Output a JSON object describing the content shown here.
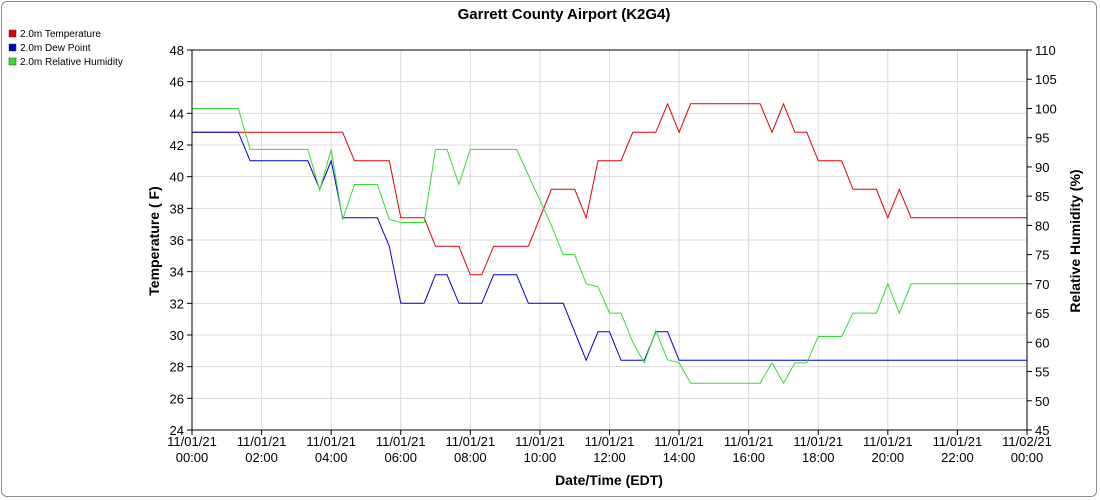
{
  "chart_data": {
    "type": "line",
    "title": "Garrett County Airport (K2G4)",
    "xlabel": "Date/Time (EDT)",
    "ylabel_left": "Temperature ( F)",
    "ylabel_right": "Relative Humidity (%)",
    "ylim_left": [
      24,
      48
    ],
    "ylim_right": [
      45,
      110
    ],
    "xlim_hours": [
      0,
      24
    ],
    "left_ticks": [
      "24",
      "26",
      "28",
      "30",
      "32",
      "34",
      "36",
      "38",
      "40",
      "42",
      "44",
      "46",
      "48"
    ],
    "right_ticks": [
      "45",
      "50",
      "55",
      "60",
      "65",
      "70",
      "75",
      "80",
      "85",
      "90",
      "95",
      "100",
      "105",
      "110"
    ],
    "x_ticks": [
      {
        "date": "11/01/21",
        "time": "00:00"
      },
      {
        "date": "11/01/21",
        "time": "02:00"
      },
      {
        "date": "11/01/21",
        "time": "04:00"
      },
      {
        "date": "11/01/21",
        "time": "06:00"
      },
      {
        "date": "11/01/21",
        "time": "08:00"
      },
      {
        "date": "11/01/21",
        "time": "10:00"
      },
      {
        "date": "11/01/21",
        "time": "12:00"
      },
      {
        "date": "11/01/21",
        "time": "14:00"
      },
      {
        "date": "11/01/21",
        "time": "16:00"
      },
      {
        "date": "11/01/21",
        "time": "18:00"
      },
      {
        "date": "11/01/21",
        "time": "20:00"
      },
      {
        "date": "11/01/21",
        "time": "22:00"
      },
      {
        "date": "11/02/21",
        "time": "00:00"
      }
    ],
    "grid": true,
    "legend_placement": "top-left",
    "series": [
      {
        "name": "2.0m Temperature",
        "color": "#e00000",
        "axis": "left",
        "points": [
          [
            0,
            42.8
          ],
          [
            1.33,
            42.8
          ],
          [
            3.25,
            42.8
          ],
          [
            4.33,
            42.8
          ],
          [
            4.67,
            41
          ],
          [
            5.67,
            41
          ],
          [
            6,
            37.4
          ],
          [
            6.67,
            37.4
          ],
          [
            7,
            35.6
          ],
          [
            7.67,
            35.6
          ],
          [
            8,
            33.8
          ],
          [
            8.33,
            33.8
          ],
          [
            8.67,
            35.6
          ],
          [
            9.67,
            35.6
          ],
          [
            10.33,
            39.2
          ],
          [
            11,
            39.2
          ],
          [
            11.33,
            37.4
          ],
          [
            11.67,
            41
          ],
          [
            12.33,
            41
          ],
          [
            12.67,
            42.8
          ],
          [
            13.33,
            42.8
          ],
          [
            13.67,
            44.6
          ],
          [
            14,
            42.8
          ],
          [
            14.33,
            44.6
          ],
          [
            15,
            44.6
          ],
          [
            16.33,
            44.6
          ],
          [
            16.67,
            42.8
          ],
          [
            17,
            44.6
          ],
          [
            17.33,
            42.8
          ],
          [
            17.67,
            42.8
          ],
          [
            18,
            41
          ],
          [
            18.67,
            41
          ],
          [
            19,
            39.2
          ],
          [
            19.67,
            39.2
          ],
          [
            20,
            37.4
          ],
          [
            20.33,
            39.2
          ],
          [
            20.67,
            37.4
          ],
          [
            22,
            37.4
          ],
          [
            24,
            37.4
          ]
        ]
      },
      {
        "name": "2.0m Dew Point",
        "color": "#0000cc",
        "axis": "left",
        "points": [
          [
            0,
            42.8
          ],
          [
            1.33,
            42.8
          ],
          [
            1.67,
            41
          ],
          [
            3,
            41
          ],
          [
            3.33,
            41
          ],
          [
            3.67,
            39.2
          ],
          [
            4,
            41
          ],
          [
            4.33,
            37.4
          ],
          [
            5,
            37.4
          ],
          [
            5.33,
            37.4
          ],
          [
            5.67,
            35.6
          ],
          [
            6,
            32
          ],
          [
            6.67,
            32
          ],
          [
            7,
            33.8
          ],
          [
            7.33,
            33.8
          ],
          [
            7.67,
            32
          ],
          [
            8.33,
            32
          ],
          [
            8.67,
            33.8
          ],
          [
            9.33,
            33.8
          ],
          [
            9.67,
            32
          ],
          [
            10.67,
            32
          ],
          [
            11,
            30.2
          ],
          [
            11.33,
            28.4
          ],
          [
            11.67,
            30.2
          ],
          [
            12,
            30.2
          ],
          [
            12.33,
            28.4
          ],
          [
            13,
            28.4
          ],
          [
            13.33,
            30.2
          ],
          [
            13.67,
            30.2
          ],
          [
            14,
            28.4
          ],
          [
            18,
            28.4
          ],
          [
            21,
            28.4
          ],
          [
            24,
            28.4
          ]
        ]
      },
      {
        "name": "2.0m Relative Humidity",
        "color": "#33dd33",
        "axis": "right",
        "points": [
          [
            0,
            100
          ],
          [
            1.33,
            100
          ],
          [
            1.67,
            93
          ],
          [
            3.33,
            93
          ],
          [
            3.67,
            86
          ],
          [
            4,
            93
          ],
          [
            4.33,
            81
          ],
          [
            4.67,
            87
          ],
          [
            5.33,
            87
          ],
          [
            5.67,
            81
          ],
          [
            6,
            80.5
          ],
          [
            6.67,
            80.5
          ],
          [
            7,
            93
          ],
          [
            7.33,
            93
          ],
          [
            7.67,
            87
          ],
          [
            8,
            93
          ],
          [
            9.33,
            93
          ],
          [
            10.33,
            80
          ],
          [
            10.67,
            75
          ],
          [
            11,
            75
          ],
          [
            11.33,
            70
          ],
          [
            11.67,
            69.5
          ],
          [
            12,
            65
          ],
          [
            12.33,
            65
          ],
          [
            12.67,
            60
          ],
          [
            13,
            56.5
          ],
          [
            13.33,
            62
          ],
          [
            13.67,
            57
          ],
          [
            14,
            56.5
          ],
          [
            14.33,
            53
          ],
          [
            15,
            53
          ],
          [
            16.33,
            53
          ],
          [
            16.67,
            56.5
          ],
          [
            17,
            53
          ],
          [
            17.33,
            56.5
          ],
          [
            17.67,
            56.5
          ],
          [
            18,
            61
          ],
          [
            18.67,
            61
          ],
          [
            19,
            65
          ],
          [
            19.67,
            65
          ],
          [
            20,
            70
          ],
          [
            20.33,
            65
          ],
          [
            20.67,
            70
          ],
          [
            22,
            70
          ],
          [
            24,
            70
          ]
        ]
      }
    ]
  }
}
